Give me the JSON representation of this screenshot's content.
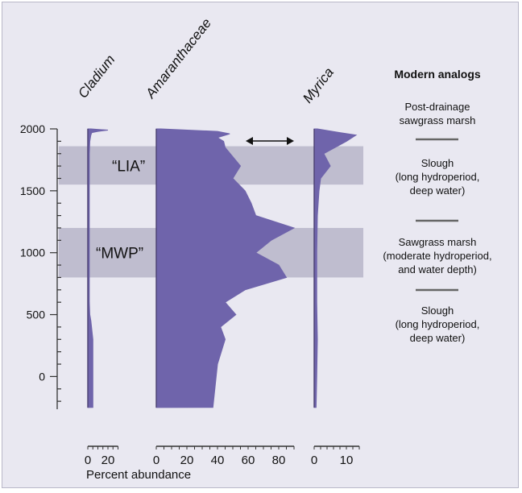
{
  "chart_data": {
    "type": "area",
    "xlabel": "Percent abundance",
    "ylim": [
      -250,
      2000
    ],
    "y_ticks": [
      "2000",
      "1500",
      "1000",
      "500",
      "0"
    ],
    "y_tick_values": [
      2000,
      1500,
      1000,
      500,
      0
    ],
    "bands": [
      {
        "label": "“LIA”",
        "from": 1550,
        "to": 1860
      },
      {
        "label": "“MWP”",
        "from": 800,
        "to": 1200
      }
    ],
    "series": [
      {
        "name": "Cladium",
        "xlim": [
          0,
          30
        ],
        "x_ticks": [
          "0",
          "20"
        ],
        "x_tick_values": [
          0,
          20
        ],
        "ages": [
          2000,
          1990,
          1980,
          1970,
          1950,
          1900,
          1800,
          1600,
          1400,
          1200,
          1000,
          800,
          600,
          500,
          450,
          300,
          0,
          -250
        ],
        "values": [
          3,
          20,
          10,
          4,
          3,
          2,
          1.5,
          1.5,
          1.5,
          1.5,
          1.5,
          1.5,
          1.5,
          2,
          3,
          5,
          5,
          5
        ]
      },
      {
        "name": "Amaranthaceae",
        "xlim": [
          0,
          90
        ],
        "x_ticks": [
          "0",
          "20",
          "40",
          "60",
          "80"
        ],
        "x_tick_values": [
          0,
          20,
          40,
          60,
          80
        ],
        "ages": [
          2000,
          1980,
          1960,
          1930,
          1900,
          1850,
          1700,
          1600,
          1500,
          1400,
          1300,
          1200,
          1100,
          1000,
          900,
          800,
          700,
          600,
          500,
          400,
          300,
          100,
          -250
        ],
        "values": [
          3,
          40,
          48,
          40,
          44,
          45,
          55,
          50,
          58,
          62,
          65,
          90,
          75,
          65,
          80,
          85,
          58,
          45,
          52,
          42,
          45,
          40,
          37
        ]
      },
      {
        "name": "Myrica",
        "xlim": [
          0,
          14
        ],
        "x_ticks": [
          "0",
          "10"
        ],
        "x_tick_values": [
          0,
          10
        ],
        "ages": [
          2000,
          1970,
          1950,
          1900,
          1800,
          1700,
          1600,
          1500,
          1300,
          1000,
          600,
          300,
          0,
          -250
        ],
        "values": [
          1,
          8,
          13,
          10,
          3,
          5,
          2,
          1.5,
          1,
          0.8,
          0.8,
          1,
          0.8,
          0.6
        ]
      }
    ],
    "arrow_label": "↔",
    "analogs": {
      "title": "Modern analogs",
      "zones": [
        {
          "lines": [
            "Post-drainage",
            "sawgrass marsh"
          ]
        },
        {
          "lines": [
            "Slough",
            "(long hydroperiod,",
            "deep water)"
          ]
        },
        {
          "lines": [
            "Sawgrass marsh",
            "(moderate hydroperiod,",
            "and water depth)"
          ]
        },
        {
          "lines": [
            "Slough",
            "(long hydroperiod,",
            "deep water)"
          ]
        }
      ]
    },
    "colors": {
      "fill": "#6f64ab",
      "band": "#b4b1c5",
      "background": "#e9e8f1"
    }
  }
}
